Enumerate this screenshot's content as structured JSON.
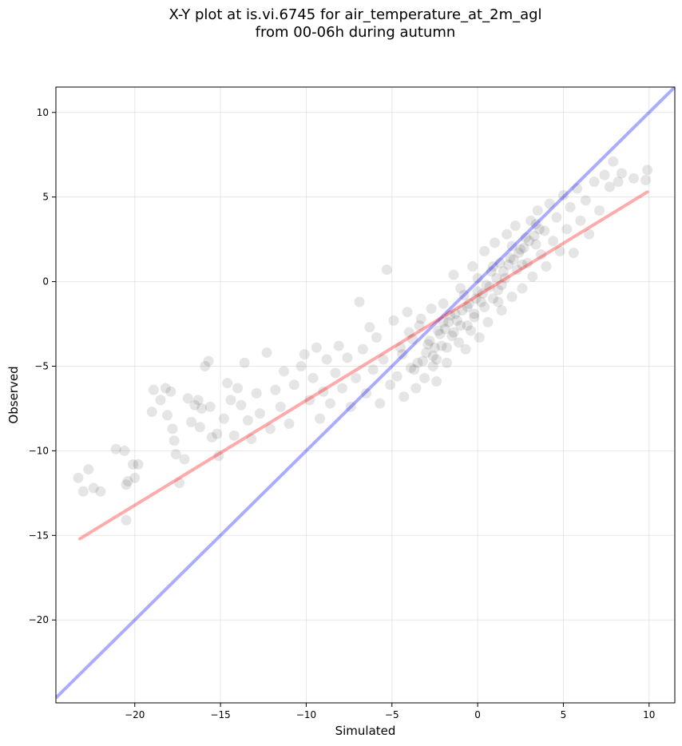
{
  "chart_data": {
    "type": "scatter",
    "title_line1": "X-Y plot at is.vi.6745 for air_temperature_at_2m_agl",
    "title_line2": "from 00-06h during autumn",
    "xlabel": "Simulated",
    "ylabel": "Observed",
    "xlim": [
      -24.6,
      11.5
    ],
    "ylim": [
      -24.9,
      11.5
    ],
    "xticks": [
      -20,
      -15,
      -10,
      -5,
      0,
      5,
      10
    ],
    "yticks": [
      -20,
      -15,
      -10,
      -5,
      0,
      5,
      10
    ],
    "xtick_labels": [
      "−20",
      "−15",
      "−10",
      "−5",
      "0",
      "5",
      "10"
    ],
    "ytick_labels": [
      "−20",
      "−15",
      "−10",
      "−5",
      "0",
      "5",
      "10"
    ],
    "grid": true,
    "marker_color": "#000000",
    "one_to_one_line": {
      "x": [
        -24.6,
        11.5
      ],
      "y": [
        -24.6,
        11.5
      ],
      "color": "#0000ff"
    },
    "regression_line": {
      "x": [
        -23.2,
        9.9
      ],
      "y": [
        -15.2,
        5.3
      ],
      "color": "#ff0000"
    },
    "points": [
      [
        -23.3,
        -11.6
      ],
      [
        -23.0,
        -12.4
      ],
      [
        -22.7,
        -11.1
      ],
      [
        -22.4,
        -12.2
      ],
      [
        -22.0,
        -12.4
      ],
      [
        -21.1,
        -9.9
      ],
      [
        -20.6,
        -10.0
      ],
      [
        -20.5,
        -12.0
      ],
      [
        -20.4,
        -11.8
      ],
      [
        -20.5,
        -14.1
      ],
      [
        -20.1,
        -10.8
      ],
      [
        -20.0,
        -11.6
      ],
      [
        -19.8,
        -10.8
      ],
      [
        -19.0,
        -7.7
      ],
      [
        -18.9,
        -6.4
      ],
      [
        -18.5,
        -7.0
      ],
      [
        -18.2,
        -6.3
      ],
      [
        -18.1,
        -7.9
      ],
      [
        -17.9,
        -6.5
      ],
      [
        -17.8,
        -8.7
      ],
      [
        -17.7,
        -9.4
      ],
      [
        -17.6,
        -10.2
      ],
      [
        -17.4,
        -11.9
      ],
      [
        -17.1,
        -10.5
      ],
      [
        -16.9,
        -6.9
      ],
      [
        -16.7,
        -8.3
      ],
      [
        -16.5,
        -7.3
      ],
      [
        -16.3,
        -7.0
      ],
      [
        -16.2,
        -8.6
      ],
      [
        -16.1,
        -7.5
      ],
      [
        -15.9,
        -5.0
      ],
      [
        -15.7,
        -4.7
      ],
      [
        -15.6,
        -7.4
      ],
      [
        -15.5,
        -9.2
      ],
      [
        -15.2,
        -9.0
      ],
      [
        -15.1,
        -10.3
      ],
      [
        -14.8,
        -8.1
      ],
      [
        -14.6,
        -6.0
      ],
      [
        -14.4,
        -7.0
      ],
      [
        -14.2,
        -9.1
      ],
      [
        -14.0,
        -6.3
      ],
      [
        -13.8,
        -7.3
      ],
      [
        -13.6,
        -4.8
      ],
      [
        -13.4,
        -8.2
      ],
      [
        -13.2,
        -9.3
      ],
      [
        -12.9,
        -6.6
      ],
      [
        -12.7,
        -7.8
      ],
      [
        -12.3,
        -4.2
      ],
      [
        -12.1,
        -8.7
      ],
      [
        -11.8,
        -6.4
      ],
      [
        -11.5,
        -7.4
      ],
      [
        -11.3,
        -5.3
      ],
      [
        -11.0,
        -8.4
      ],
      [
        -10.7,
        -6.1
      ],
      [
        -10.3,
        -5.0
      ],
      [
        -10.1,
        -4.3
      ],
      [
        -9.8,
        -7.0
      ],
      [
        -9.6,
        -5.7
      ],
      [
        -9.4,
        -3.9
      ],
      [
        -9.2,
        -8.1
      ],
      [
        -9.0,
        -6.5
      ],
      [
        -8.8,
        -4.6
      ],
      [
        -8.6,
        -7.2
      ],
      [
        -8.3,
        -5.4
      ],
      [
        -8.1,
        -3.8
      ],
      [
        -7.9,
        -6.3
      ],
      [
        -7.6,
        -4.5
      ],
      [
        -7.4,
        -7.4
      ],
      [
        -7.1,
        -5.7
      ],
      [
        -6.9,
        -1.2
      ],
      [
        -6.7,
        -4.0
      ],
      [
        -6.5,
        -6.6
      ],
      [
        -6.3,
        -2.7
      ],
      [
        -6.1,
        -5.2
      ],
      [
        -5.9,
        -3.3
      ],
      [
        -5.7,
        -7.2
      ],
      [
        -5.5,
        -4.6
      ],
      [
        -5.3,
        0.7
      ],
      [
        -5.1,
        -6.1
      ],
      [
        -4.9,
        -2.3
      ],
      [
        -4.7,
        -5.6
      ],
      [
        -4.5,
        -3.9
      ],
      [
        -4.3,
        -6.8
      ],
      [
        -4.1,
        -1.8
      ],
      [
        -3.9,
        -5.1
      ],
      [
        -3.8,
        -3.4
      ],
      [
        -3.6,
        -6.3
      ],
      [
        -3.4,
        -2.6
      ],
      [
        -3.2,
        -4.7
      ],
      [
        -3.1,
        -5.7
      ],
      [
        -2.9,
        -3.7
      ],
      [
        -2.7,
        -1.6
      ],
      [
        -2.6,
        -4.4
      ],
      [
        -2.4,
        -5.9
      ],
      [
        -2.3,
        -2.9
      ],
      [
        -2.1,
        -3.8
      ],
      [
        -2.0,
        -1.3
      ],
      [
        -1.8,
        -4.8
      ],
      [
        -1.7,
        -2.4
      ],
      [
        -1.5,
        -3.2
      ],
      [
        -1.4,
        0.4
      ],
      [
        -1.3,
        -1.9
      ],
      [
        -1.1,
        -3.6
      ],
      [
        -1.0,
        -2.6
      ],
      [
        -0.8,
        -0.8
      ],
      [
        -0.7,
        -4.0
      ],
      [
        -0.6,
        -1.5
      ],
      [
        -0.4,
        -2.9
      ],
      [
        -0.3,
        0.9
      ],
      [
        -0.2,
        -2.1
      ],
      [
        0.0,
        -0.6
      ],
      [
        0.1,
        -3.3
      ],
      [
        0.2,
        -1.2
      ],
      [
        0.4,
        1.8
      ],
      [
        0.5,
        -0.2
      ],
      [
        0.6,
        -2.4
      ],
      [
        0.8,
        0.6
      ],
      [
        0.9,
        -1.0
      ],
      [
        1.0,
        2.3
      ],
      [
        1.2,
        -0.5
      ],
      [
        1.3,
        1.1
      ],
      [
        1.4,
        -1.7
      ],
      [
        1.6,
        0.2
      ],
      [
        1.7,
        2.8
      ],
      [
        1.9,
        1.4
      ],
      [
        2.0,
        -0.9
      ],
      [
        2.2,
        3.3
      ],
      [
        2.3,
        0.7
      ],
      [
        2.5,
        1.9
      ],
      [
        2.6,
        -0.4
      ],
      [
        2.8,
        2.6
      ],
      [
        2.9,
        1.1
      ],
      [
        3.1,
        3.6
      ],
      [
        3.2,
        0.3
      ],
      [
        3.4,
        2.2
      ],
      [
        3.5,
        4.2
      ],
      [
        3.7,
        1.6
      ],
      [
        3.9,
        3.0
      ],
      [
        4.0,
        0.9
      ],
      [
        4.2,
        4.6
      ],
      [
        4.4,
        2.4
      ],
      [
        4.6,
        3.8
      ],
      [
        4.8,
        1.8
      ],
      [
        5.0,
        5.1
      ],
      [
        5.2,
        3.1
      ],
      [
        5.4,
        4.4
      ],
      [
        5.6,
        1.7
      ],
      [
        5.8,
        5.5
      ],
      [
        6.0,
        3.6
      ],
      [
        6.3,
        4.8
      ],
      [
        6.5,
        2.8
      ],
      [
        6.8,
        5.9
      ],
      [
        7.1,
        4.2
      ],
      [
        7.4,
        6.3
      ],
      [
        7.7,
        5.6
      ],
      [
        7.9,
        7.1
      ],
      [
        8.2,
        5.9
      ],
      [
        8.4,
        6.4
      ],
      [
        9.1,
        6.1
      ],
      [
        9.8,
        6.0
      ],
      [
        9.9,
        6.6
      ],
      [
        -3.0,
        -4.2
      ],
      [
        -2.8,
        -3.5
      ],
      [
        -2.5,
        -3.9
      ],
      [
        -2.2,
        -3.1
      ],
      [
        -1.9,
        -2.8
      ],
      [
        -1.6,
        -2.0
      ],
      [
        -1.2,
        -2.3
      ],
      [
        -0.9,
        -1.7
      ],
      [
        -0.5,
        -1.3
      ],
      [
        -0.1,
        -1.0
      ],
      [
        0.3,
        -0.7
      ],
      [
        0.7,
        -0.3
      ],
      [
        1.1,
        0.2
      ],
      [
        1.5,
        0.6
      ],
      [
        1.8,
        1.0
      ],
      [
        2.1,
        1.3
      ],
      [
        2.4,
        1.7
      ],
      [
        2.7,
        2.0
      ],
      [
        3.0,
        2.4
      ],
      [
        3.3,
        2.7
      ],
      [
        3.6,
        3.1
      ],
      [
        -3.5,
        -4.8
      ],
      [
        -2.6,
        -5.0
      ],
      [
        -1.8,
        -3.9
      ],
      [
        -0.6,
        -2.6
      ],
      [
        0.4,
        -1.5
      ],
      [
        1.4,
        -0.2
      ],
      [
        2.6,
        1.0
      ],
      [
        -4.4,
        -4.3
      ],
      [
        -3.3,
        -2.2
      ],
      [
        -2.0,
        -2.4
      ],
      [
        -1.0,
        -0.4
      ],
      [
        0.0,
        0.2
      ],
      [
        0.9,
        0.9
      ],
      [
        2.0,
        2.1
      ],
      [
        3.4,
        3.4
      ],
      [
        -4.0,
        -3.0
      ],
      [
        -3.7,
        -5.2
      ],
      [
        -2.4,
        -4.6
      ],
      [
        -1.4,
        -3.0
      ],
      [
        -0.2,
        -1.9
      ],
      [
        1.2,
        -1.2
      ]
    ]
  }
}
